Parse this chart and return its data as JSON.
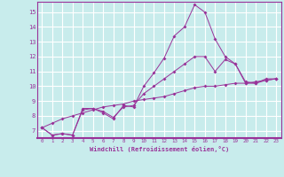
{
  "xlabel": "Windchill (Refroidissement éolien,°C)",
  "ylabel": "",
  "background_color": "#c8ecec",
  "line_color": "#993399",
  "grid_color": "#aadddd",
  "xlim": [
    -0.5,
    23.5
  ],
  "ylim": [
    6.5,
    15.7
  ],
  "xticks": [
    0,
    1,
    2,
    3,
    4,
    5,
    6,
    7,
    8,
    9,
    10,
    11,
    12,
    13,
    14,
    15,
    16,
    17,
    18,
    19,
    20,
    21,
    22,
    23
  ],
  "yticks": [
    7,
    8,
    9,
    10,
    11,
    12,
    13,
    14,
    15
  ],
  "series": [
    [
      7.2,
      6.7,
      6.8,
      6.7,
      8.5,
      8.5,
      8.2,
      7.8,
      8.7,
      8.6,
      10.0,
      10.9,
      11.9,
      13.4,
      14.0,
      15.5,
      15.0,
      13.2,
      12.0,
      11.5,
      10.2,
      10.2,
      10.5,
      10.5
    ],
    [
      7.2,
      6.7,
      6.8,
      6.7,
      8.4,
      8.5,
      8.3,
      7.9,
      8.6,
      8.7,
      9.5,
      10.0,
      10.5,
      11.0,
      11.5,
      12.0,
      12.0,
      11.0,
      11.8,
      11.5,
      10.3,
      10.2,
      10.4,
      10.5
    ],
    [
      7.2,
      7.5,
      7.8,
      8.0,
      8.2,
      8.4,
      8.6,
      8.7,
      8.8,
      9.0,
      9.1,
      9.2,
      9.3,
      9.5,
      9.7,
      9.9,
      10.0,
      10.0,
      10.1,
      10.2,
      10.2,
      10.3,
      10.4,
      10.5
    ]
  ]
}
